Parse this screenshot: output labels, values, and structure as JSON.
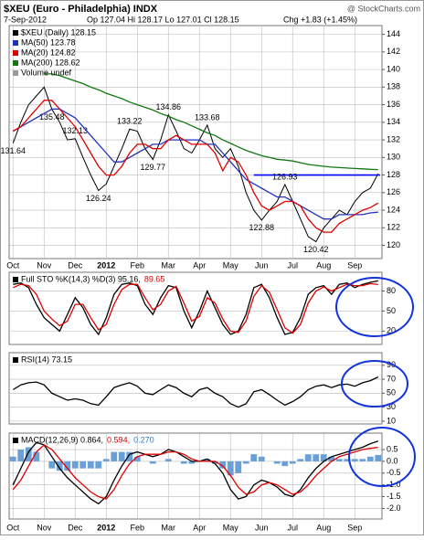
{
  "header": {
    "title": "$XEU (Euro - Philadelphia) INDX",
    "date": "7-Sep-2012",
    "quote": "Op 127.04 Hi 128.17 Lo 127.01 Cl 128.15",
    "change": "Chg +1.83 (+1.45%)",
    "source": "@ StockCharts.com"
  },
  "chart_data": [
    {
      "type": "line",
      "categories": [
        "Oct",
        null,
        null,
        null,
        "Nov",
        null,
        null,
        null,
        "Dec",
        null,
        null,
        null,
        "2012",
        null,
        null,
        null,
        "Feb",
        null,
        null,
        null,
        "Mar",
        null,
        null,
        null,
        "Apr",
        null,
        null,
        null,
        "May",
        null,
        null,
        null,
        "Jun",
        null,
        null,
        null,
        "Jul",
        null,
        null,
        null,
        "Aug",
        null,
        null,
        null,
        "Sep",
        null,
        null,
        null
      ],
      "ylim": [
        118.5,
        145
      ],
      "yticks": [
        120,
        122,
        124,
        126,
        128,
        130,
        132,
        134,
        136,
        138,
        140,
        142,
        144
      ],
      "hlines": [
        128
      ],
      "hline_color": "#0000ff",
      "note": "Volume undef",
      "series": [
        {
          "name": "$XEU (Daily) 128.15",
          "color": "#000000",
          "values": [
            131.64,
            134,
            136,
            137,
            138,
            135.48,
            134,
            132,
            132.13,
            130,
            128,
            126.24,
            127,
            129,
            131,
            133.22,
            133,
            131,
            129.77,
            132,
            134.86,
            133,
            131,
            130.5,
            132,
            133.68,
            131,
            130,
            131,
            129,
            126,
            124,
            122.88,
            124,
            125,
            126.93,
            125,
            123,
            121,
            120.42,
            122,
            123,
            124,
            123.5,
            125,
            126,
            126.5,
            128.15
          ],
          "value_labels": [
            "131.64",
            null,
            null,
            null,
            null,
            "135.48",
            null,
            null,
            "132.13",
            null,
            null,
            "126.24",
            null,
            null,
            null,
            "133.22",
            null,
            null,
            "129.77",
            null,
            "134.86",
            null,
            null,
            null,
            null,
            "133.68",
            null,
            null,
            null,
            null,
            null,
            null,
            "122.88",
            null,
            null,
            "126.93",
            null,
            null,
            null,
            "120.42",
            null,
            null,
            null,
            null,
            null,
            null,
            null,
            null
          ]
        },
        {
          "name": "MA(50) 123.78",
          "color": "#2233bb",
          "values": [
            133,
            133.5,
            134,
            134.5,
            135,
            135.5,
            135.5,
            135,
            134.5,
            133.5,
            132.5,
            131.5,
            130.5,
            129.5,
            129.5,
            130,
            130.5,
            131,
            131.5,
            131.5,
            132,
            132,
            132,
            132,
            132,
            131.5,
            131.5,
            130.5,
            129.5,
            128.5,
            127.5,
            127,
            126.5,
            126,
            125.5,
            125.5,
            125,
            124.5,
            124,
            123.5,
            123,
            123,
            123.5,
            123.5,
            123.5,
            123.5,
            123.7,
            123.78
          ]
        },
        {
          "name": "MA(20) 124.82",
          "color": "#dd0000",
          "values": [
            133,
            133.5,
            134.5,
            135.5,
            136.5,
            136.5,
            135.5,
            134.5,
            133.5,
            132,
            130.5,
            129,
            128,
            128,
            129,
            130.5,
            131.5,
            131.5,
            131,
            131,
            132,
            132.5,
            132,
            131.5,
            131.5,
            131.5,
            130.5,
            128.5,
            130,
            129.5,
            128,
            126,
            124.5,
            124,
            124.5,
            125,
            125,
            124.5,
            123,
            122,
            121.5,
            121.5,
            122.5,
            123,
            123.5,
            124,
            124.3,
            124.82
          ]
        },
        {
          "name": "MA(200) 128.62",
          "color": "#117711",
          "values": [
            null,
            null,
            null,
            null,
            139.5,
            139.5,
            139.3,
            139,
            138.7,
            138.4,
            138,
            137.7,
            137.3,
            137,
            136.7,
            136.3,
            136,
            135.7,
            135.4,
            135,
            134.7,
            134.3,
            134,
            133.6,
            133.2,
            132.8,
            132.5,
            132,
            131.6,
            131.2,
            130.8,
            130.5,
            130.2,
            130,
            129.8,
            129.7,
            129.6,
            129.4,
            129.2,
            129.1,
            129,
            128.9,
            128.85,
            128.8,
            128.75,
            128.7,
            128.65,
            128.62
          ]
        }
      ]
    },
    {
      "type": "line",
      "ylim": [
        0,
        108
      ],
      "yticks": [
        20,
        50,
        80
      ],
      "legend": [
        {
          "text": "Full STO %K(14,3) %D(3) 95.16,",
          "color": "#000000"
        },
        {
          "text": "89.65",
          "color": "#dd0000"
        }
      ],
      "series": [
        {
          "color": "#000000",
          "values": [
            90,
            92,
            85,
            60,
            40,
            30,
            20,
            45,
            70,
            55,
            30,
            15,
            40,
            75,
            90,
            92,
            88,
            60,
            45,
            70,
            88,
            85,
            50,
            25,
            50,
            80,
            55,
            30,
            15,
            20,
            45,
            85,
            90,
            70,
            40,
            15,
            18,
            40,
            75,
            85,
            88,
            75,
            90,
            92,
            85,
            90,
            93,
            95.16
          ]
        },
        {
          "color": "#dd0000",
          "values": [
            85,
            90,
            88,
            75,
            50,
            38,
            28,
            35,
            60,
            60,
            40,
            22,
            30,
            60,
            82,
            90,
            90,
            70,
            52,
            60,
            80,
            87,
            62,
            35,
            42,
            70,
            62,
            38,
            20,
            18,
            35,
            72,
            88,
            78,
            52,
            25,
            17,
            30,
            62,
            80,
            86,
            80,
            85,
            90,
            88,
            88,
            91,
            89.65
          ]
        }
      ]
    },
    {
      "type": "line",
      "ylim": [
        6,
        108
      ],
      "yticks": [
        10,
        30,
        50,
        70,
        90
      ],
      "legend": [
        {
          "text": "RSI(14) 73.15",
          "color": "#000000"
        }
      ],
      "series": [
        {
          "color": "#000000",
          "values": [
            55,
            62,
            65,
            66,
            62,
            50,
            45,
            40,
            42,
            40,
            35,
            33,
            45,
            58,
            62,
            65,
            60,
            50,
            48,
            55,
            62,
            58,
            50,
            45,
            55,
            58,
            50,
            45,
            35,
            30,
            35,
            52,
            55,
            48,
            40,
            33,
            38,
            45,
            55,
            60,
            62,
            58,
            62,
            63,
            60,
            65,
            68,
            73.15
          ]
        }
      ]
    },
    {
      "type": "line",
      "categories": [
        "Oct",
        null,
        null,
        null,
        "Nov",
        null,
        null,
        null,
        "Dec",
        null,
        null,
        null,
        "2012",
        null,
        null,
        null,
        "Feb",
        null,
        null,
        null,
        "Mar",
        null,
        null,
        null,
        "Apr",
        null,
        null,
        null,
        "May",
        null,
        null,
        null,
        "Jun",
        null,
        null,
        null,
        "Jul",
        null,
        null,
        null,
        "Aug",
        null,
        null,
        null,
        "Sep",
        null,
        null,
        null
      ],
      "ylim": [
        -2.45,
        1.2
      ],
      "yticks": [
        0.5,
        {
          "value": 0,
          "label": "0.0"
        },
        -0.5,
        {
          "value": -1,
          "label": "-1.0"
        },
        -1.5,
        {
          "value": -2,
          "label": "-2.0"
        }
      ],
      "legend": [
        {
          "text": "MACD(12,26,9) 0.864,",
          "color": "#000000"
        },
        {
          "text": "0.594,",
          "color": "#dd0000"
        },
        {
          "text": "0.270",
          "color": "#3377cc"
        }
      ],
      "series": [
        {
          "type": "bar",
          "color": "#6a9fd8",
          "values": [
            0.2,
            0.5,
            0.6,
            0.4,
            0,
            -0.3,
            -0.4,
            -0.4,
            -0.3,
            -0.3,
            -0.3,
            -0.3,
            0.1,
            0.4,
            0.4,
            0.4,
            0.2,
            0,
            -0.1,
            0,
            0.1,
            0,
            -0.1,
            -0.1,
            0,
            0.1,
            -0.1,
            -0.3,
            -0.6,
            -0.5,
            -0.1,
            0.3,
            0.2,
            0,
            -0.1,
            -0.2,
            -0.1,
            0.1,
            0.3,
            0.3,
            0.3,
            0.2,
            0.1,
            0.1,
            0.1,
            0.1,
            0.2,
            0.27
          ]
        },
        {
          "color": "#000000",
          "values": [
            -1.0,
            -0.3,
            0.4,
            0.8,
            0.7,
            0.2,
            -0.3,
            -0.7,
            -1.0,
            -1.3,
            -1.6,
            -1.8,
            -1.5,
            -0.8,
            -0.2,
            0.3,
            0.4,
            0.3,
            0.2,
            0.3,
            0.5,
            0.4,
            0.2,
            0,
            0,
            0.1,
            -0.1,
            -0.5,
            -1.2,
            -1.6,
            -1.5,
            -1.0,
            -0.8,
            -0.9,
            -1.1,
            -1.4,
            -1.5,
            -1.2,
            -0.7,
            -0.3,
            0,
            0.2,
            0.3,
            0.4,
            0.5,
            0.6,
            0.75,
            0.864
          ]
        },
        {
          "color": "#dd0000",
          "values": [
            -1.2,
            -0.8,
            -0.2,
            0.4,
            0.7,
            0.5,
            0.1,
            -0.3,
            -0.7,
            -1.0,
            -1.3,
            -1.5,
            -1.6,
            -1.2,
            -0.6,
            -0.1,
            0.2,
            0.3,
            0.3,
            0.3,
            0.4,
            0.4,
            0.3,
            0.1,
            0,
            0,
            0,
            -0.2,
            -0.6,
            -1.1,
            -1.4,
            -1.3,
            -1.0,
            -0.9,
            -1.0,
            -1.2,
            -1.4,
            -1.3,
            -1.0,
            -0.6,
            -0.3,
            0,
            0.2,
            0.3,
            0.4,
            0.5,
            0.55,
            0.594
          ]
        }
      ]
    }
  ]
}
